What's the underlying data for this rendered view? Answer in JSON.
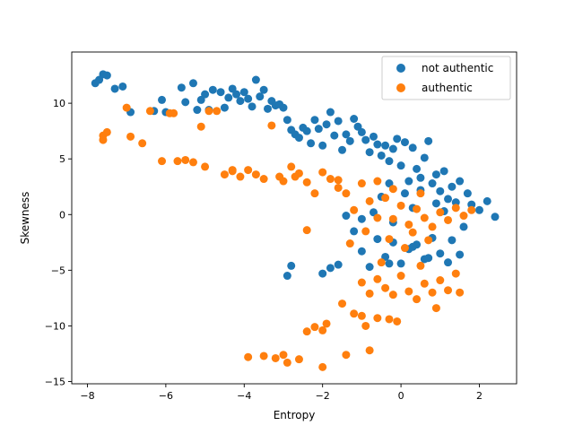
{
  "chart_data": {
    "type": "scatter",
    "xlabel": "Entropy",
    "ylabel": "Skewness",
    "xlim": [
      -8.4,
      2.95
    ],
    "ylim": [
      -15.2,
      14.6
    ],
    "x_ticks": [
      -8,
      -6,
      -4,
      -2,
      0,
      2
    ],
    "y_ticks": [
      -15,
      -10,
      -5,
      0,
      5,
      10
    ],
    "grid": false,
    "legend_position": "top-right",
    "series": [
      {
        "name": "not authentic",
        "color": "#1f77b4",
        "points": [
          [
            -7.8,
            11.8
          ],
          [
            -7.7,
            12.1
          ],
          [
            -7.6,
            12.6
          ],
          [
            -7.5,
            12.5
          ],
          [
            -7.3,
            11.3
          ],
          [
            -7.1,
            11.5
          ],
          [
            -6.9,
            9.2
          ],
          [
            -6.3,
            9.3
          ],
          [
            -6.1,
            10.3
          ],
          [
            -6.0,
            9.2
          ],
          [
            -5.6,
            11.4
          ],
          [
            -5.5,
            10.1
          ],
          [
            -5.3,
            11.8
          ],
          [
            -5.2,
            9.4
          ],
          [
            -5.1,
            10.3
          ],
          [
            -5.0,
            10.8
          ],
          [
            -4.9,
            9.4
          ],
          [
            -4.8,
            11.2
          ],
          [
            -4.6,
            11.0
          ],
          [
            -4.5,
            9.6
          ],
          [
            -4.4,
            10.5
          ],
          [
            -4.3,
            11.3
          ],
          [
            -4.2,
            10.8
          ],
          [
            -4.1,
            10.2
          ],
          [
            -4.0,
            11.0
          ],
          [
            -3.9,
            10.4
          ],
          [
            -3.8,
            9.7
          ],
          [
            -3.7,
            12.1
          ],
          [
            -3.6,
            10.6
          ],
          [
            -3.5,
            11.2
          ],
          [
            -3.4,
            9.5
          ],
          [
            -3.3,
            10.2
          ],
          [
            -3.2,
            9.8
          ],
          [
            -3.1,
            9.9
          ],
          [
            -3.0,
            9.6
          ],
          [
            -2.9,
            8.5
          ],
          [
            -2.8,
            7.6
          ],
          [
            -2.7,
            7.2
          ],
          [
            -2.6,
            6.9
          ],
          [
            -2.5,
            7.8
          ],
          [
            -2.4,
            7.5
          ],
          [
            -2.3,
            6.4
          ],
          [
            -2.2,
            8.5
          ],
          [
            -2.1,
            7.7
          ],
          [
            -2.0,
            6.2
          ],
          [
            -1.9,
            8.1
          ],
          [
            -1.8,
            9.2
          ],
          [
            -1.7,
            7.1
          ],
          [
            -1.6,
            8.4
          ],
          [
            -1.5,
            5.8
          ],
          [
            -1.4,
            7.2
          ],
          [
            -1.3,
            6.6
          ],
          [
            -1.2,
            8.6
          ],
          [
            -1.1,
            7.9
          ],
          [
            -1.0,
            7.4
          ],
          [
            -0.9,
            6.7
          ],
          [
            -0.8,
            5.6
          ],
          [
            -0.7,
            7.0
          ],
          [
            -0.6,
            6.3
          ],
          [
            -0.5,
            5.3
          ],
          [
            -0.4,
            6.2
          ],
          [
            -0.3,
            4.8
          ],
          [
            -0.2,
            5.9
          ],
          [
            -0.1,
            6.8
          ],
          [
            0.0,
            4.4
          ],
          [
            0.1,
            6.5
          ],
          [
            0.2,
            3.0
          ],
          [
            0.3,
            6.0
          ],
          [
            0.4,
            4.1
          ],
          [
            0.5,
            3.3
          ],
          [
            0.6,
            5.1
          ],
          [
            0.7,
            6.6
          ],
          [
            0.8,
            2.8
          ],
          [
            0.9,
            3.6
          ],
          [
            1.0,
            2.1
          ],
          [
            1.1,
            3.9
          ],
          [
            1.2,
            1.4
          ],
          [
            1.3,
            2.5
          ],
          [
            1.4,
            1.1
          ],
          [
            1.5,
            3.0
          ],
          [
            1.7,
            1.9
          ],
          [
            1.8,
            0.9
          ],
          [
            2.0,
            0.4
          ],
          [
            2.2,
            1.2
          ],
          [
            2.4,
            -0.2
          ],
          [
            1.6,
            -1.1
          ],
          [
            1.3,
            -2.3
          ],
          [
            1.0,
            -3.5
          ],
          [
            0.8,
            -2.1
          ],
          [
            0.6,
            -4.0
          ],
          [
            0.4,
            -2.7
          ],
          [
            0.2,
            -3.1
          ],
          [
            0.0,
            -4.4
          ],
          [
            -0.2,
            -2.5
          ],
          [
            -0.4,
            -3.8
          ],
          [
            -0.6,
            -2.2
          ],
          [
            -0.8,
            -4.7
          ],
          [
            -1.0,
            -3.3
          ],
          [
            -1.2,
            -1.5
          ],
          [
            -1.4,
            -0.1
          ],
          [
            -1.6,
            -4.5
          ],
          [
            -1.8,
            -4.8
          ],
          [
            -2.0,
            -5.3
          ],
          [
            -2.8,
            -4.6
          ],
          [
            -2.9,
            -5.5
          ],
          [
            -0.3,
            -4.4
          ],
          [
            0.3,
            -2.9
          ],
          [
            0.7,
            -3.9
          ],
          [
            1.2,
            -4.3
          ],
          [
            1.5,
            -3.6
          ],
          [
            -0.5,
            1.6
          ],
          [
            -0.3,
            2.8
          ],
          [
            0.1,
            1.9
          ],
          [
            0.3,
            0.6
          ],
          [
            0.5,
            2.2
          ],
          [
            0.9,
            1.0
          ],
          [
            1.1,
            0.3
          ],
          [
            -0.7,
            0.2
          ],
          [
            -1.0,
            -0.4
          ],
          [
            -0.2,
            -0.7
          ]
        ]
      },
      {
        "name": "authentic",
        "color": "#ff7f0e",
        "points": [
          [
            -7.6,
            7.1
          ],
          [
            -7.5,
            7.4
          ],
          [
            -7.6,
            6.7
          ],
          [
            -7.0,
            9.6
          ],
          [
            -6.9,
            7.0
          ],
          [
            -6.6,
            6.4
          ],
          [
            -6.4,
            9.3
          ],
          [
            -6.1,
            4.8
          ],
          [
            -5.9,
            9.1
          ],
          [
            -5.8,
            9.1
          ],
          [
            -5.7,
            4.8
          ],
          [
            -5.5,
            4.9
          ],
          [
            -5.3,
            4.7
          ],
          [
            -5.1,
            7.9
          ],
          [
            -4.9,
            9.3
          ],
          [
            -4.7,
            9.3
          ],
          [
            -4.5,
            3.6
          ],
          [
            -4.3,
            3.9
          ],
          [
            -4.1,
            3.4
          ],
          [
            -3.9,
            4.0
          ],
          [
            -3.7,
            3.6
          ],
          [
            -3.5,
            3.2
          ],
          [
            -3.3,
            8.0
          ],
          [
            -3.1,
            3.4
          ],
          [
            -3.0,
            3.0
          ],
          [
            -2.8,
            4.3
          ],
          [
            -2.6,
            3.7
          ],
          [
            -2.4,
            2.9
          ],
          [
            -2.2,
            1.9
          ],
          [
            -2.0,
            3.8
          ],
          [
            -1.8,
            3.2
          ],
          [
            -1.6,
            2.4
          ],
          [
            -1.4,
            1.9
          ],
          [
            -1.2,
            0.4
          ],
          [
            -1.0,
            2.8
          ],
          [
            -0.8,
            1.2
          ],
          [
            -0.6,
            -0.3
          ],
          [
            -0.4,
            1.5
          ],
          [
            -0.2,
            -0.4
          ],
          [
            0.0,
            0.8
          ],
          [
            0.2,
            -0.9
          ],
          [
            0.4,
            0.5
          ],
          [
            0.6,
            -0.3
          ],
          [
            0.8,
            -1.1
          ],
          [
            1.0,
            0.2
          ],
          [
            1.2,
            -0.5
          ],
          [
            1.4,
            0.6
          ],
          [
            1.6,
            -0.1
          ],
          [
            1.8,
            0.4
          ],
          [
            -3.9,
            -12.8
          ],
          [
            -3.5,
            -12.7
          ],
          [
            -3.2,
            -12.9
          ],
          [
            -3.0,
            -12.6
          ],
          [
            -2.9,
            -13.3
          ],
          [
            -2.6,
            -13.0
          ],
          [
            -2.0,
            -13.7
          ],
          [
            -2.4,
            -10.5
          ],
          [
            -2.2,
            -10.1
          ],
          [
            -2.0,
            -10.4
          ],
          [
            -1.9,
            -9.8
          ],
          [
            -1.5,
            -8.0
          ],
          [
            -1.4,
            -12.6
          ],
          [
            -1.2,
            -8.9
          ],
          [
            -1.0,
            -9.1
          ],
          [
            -0.9,
            -10.0
          ],
          [
            -0.8,
            -12.2
          ],
          [
            -0.6,
            -9.3
          ],
          [
            -0.3,
            -9.4
          ],
          [
            -0.1,
            -9.6
          ],
          [
            -1.0,
            -6.1
          ],
          [
            -0.8,
            -7.1
          ],
          [
            -0.6,
            -5.8
          ],
          [
            -0.4,
            -6.6
          ],
          [
            -0.2,
            -7.2
          ],
          [
            0.0,
            -5.5
          ],
          [
            0.2,
            -6.9
          ],
          [
            0.4,
            -7.6
          ],
          [
            0.6,
            -6.2
          ],
          [
            0.8,
            -7.0
          ],
          [
            1.0,
            -5.9
          ],
          [
            1.2,
            -6.8
          ],
          [
            1.4,
            -5.3
          ],
          [
            1.5,
            -7.0
          ],
          [
            0.9,
            -8.4
          ],
          [
            0.5,
            -4.6
          ],
          [
            0.1,
            -3.0
          ],
          [
            -0.3,
            -2.2
          ],
          [
            0.3,
            -1.6
          ],
          [
            0.7,
            -2.3
          ],
          [
            -0.5,
            -4.3
          ],
          [
            -2.4,
            -1.4
          ],
          [
            -0.9,
            -1.5
          ],
          [
            -1.3,
            -2.6
          ],
          [
            -0.2,
            2.3
          ],
          [
            0.5,
            1.9
          ],
          [
            -0.6,
            3.0
          ],
          [
            -1.6,
            3.1
          ],
          [
            -2.7,
            3.4
          ],
          [
            -4.3,
            4.0
          ],
          [
            -5.0,
            4.3
          ]
        ]
      }
    ]
  }
}
